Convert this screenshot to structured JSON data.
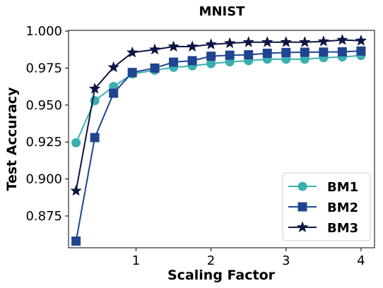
{
  "chart_data": {
    "type": "line",
    "title": "MNIST",
    "xlabel": "Scaling Factor",
    "ylabel": "Test Accuracy",
    "xlim": [
      0.1,
      4.18
    ],
    "ylim": [
      0.8535,
      1.0005
    ],
    "xticks": [
      1,
      2,
      3,
      4
    ],
    "yticks": [
      0.875,
      0.9,
      0.925,
      0.95,
      0.975,
      1.0
    ],
    "xtick_labels": [
      "1",
      "2",
      "3",
      "4"
    ],
    "ytick_labels": [
      "0.875",
      "0.900",
      "0.925",
      "0.950",
      "0.975",
      "1.000"
    ],
    "grid": false,
    "legend_position": "bottom-right",
    "x": [
      0.2,
      0.45,
      0.7,
      0.95,
      1.25,
      1.5,
      1.75,
      2.0,
      2.25,
      2.5,
      2.75,
      3.0,
      3.25,
      3.5,
      3.75,
      4.0
    ],
    "series": [
      {
        "name": "BM1",
        "color": "#3aafb0",
        "marker": "circle",
        "values": [
          0.9245,
          0.953,
          0.9625,
          0.971,
          0.9735,
          0.9755,
          0.9765,
          0.978,
          0.9792,
          0.98,
          0.981,
          0.981,
          0.981,
          0.982,
          0.9825,
          0.9835
        ]
      },
      {
        "name": "BM2",
        "color": "#1f4590",
        "marker": "square",
        "values": [
          0.858,
          0.928,
          0.958,
          0.972,
          0.975,
          0.979,
          0.98,
          0.983,
          0.9837,
          0.984,
          0.985,
          0.9855,
          0.9857,
          0.9858,
          0.986,
          0.9865
        ]
      },
      {
        "name": "BM3",
        "color": "#0d1545",
        "marker": "star",
        "values": [
          0.892,
          0.961,
          0.9755,
          0.9855,
          0.9875,
          0.9895,
          0.9895,
          0.991,
          0.9918,
          0.9925,
          0.9925,
          0.9925,
          0.9925,
          0.993,
          0.994,
          0.9935
        ]
      }
    ]
  }
}
